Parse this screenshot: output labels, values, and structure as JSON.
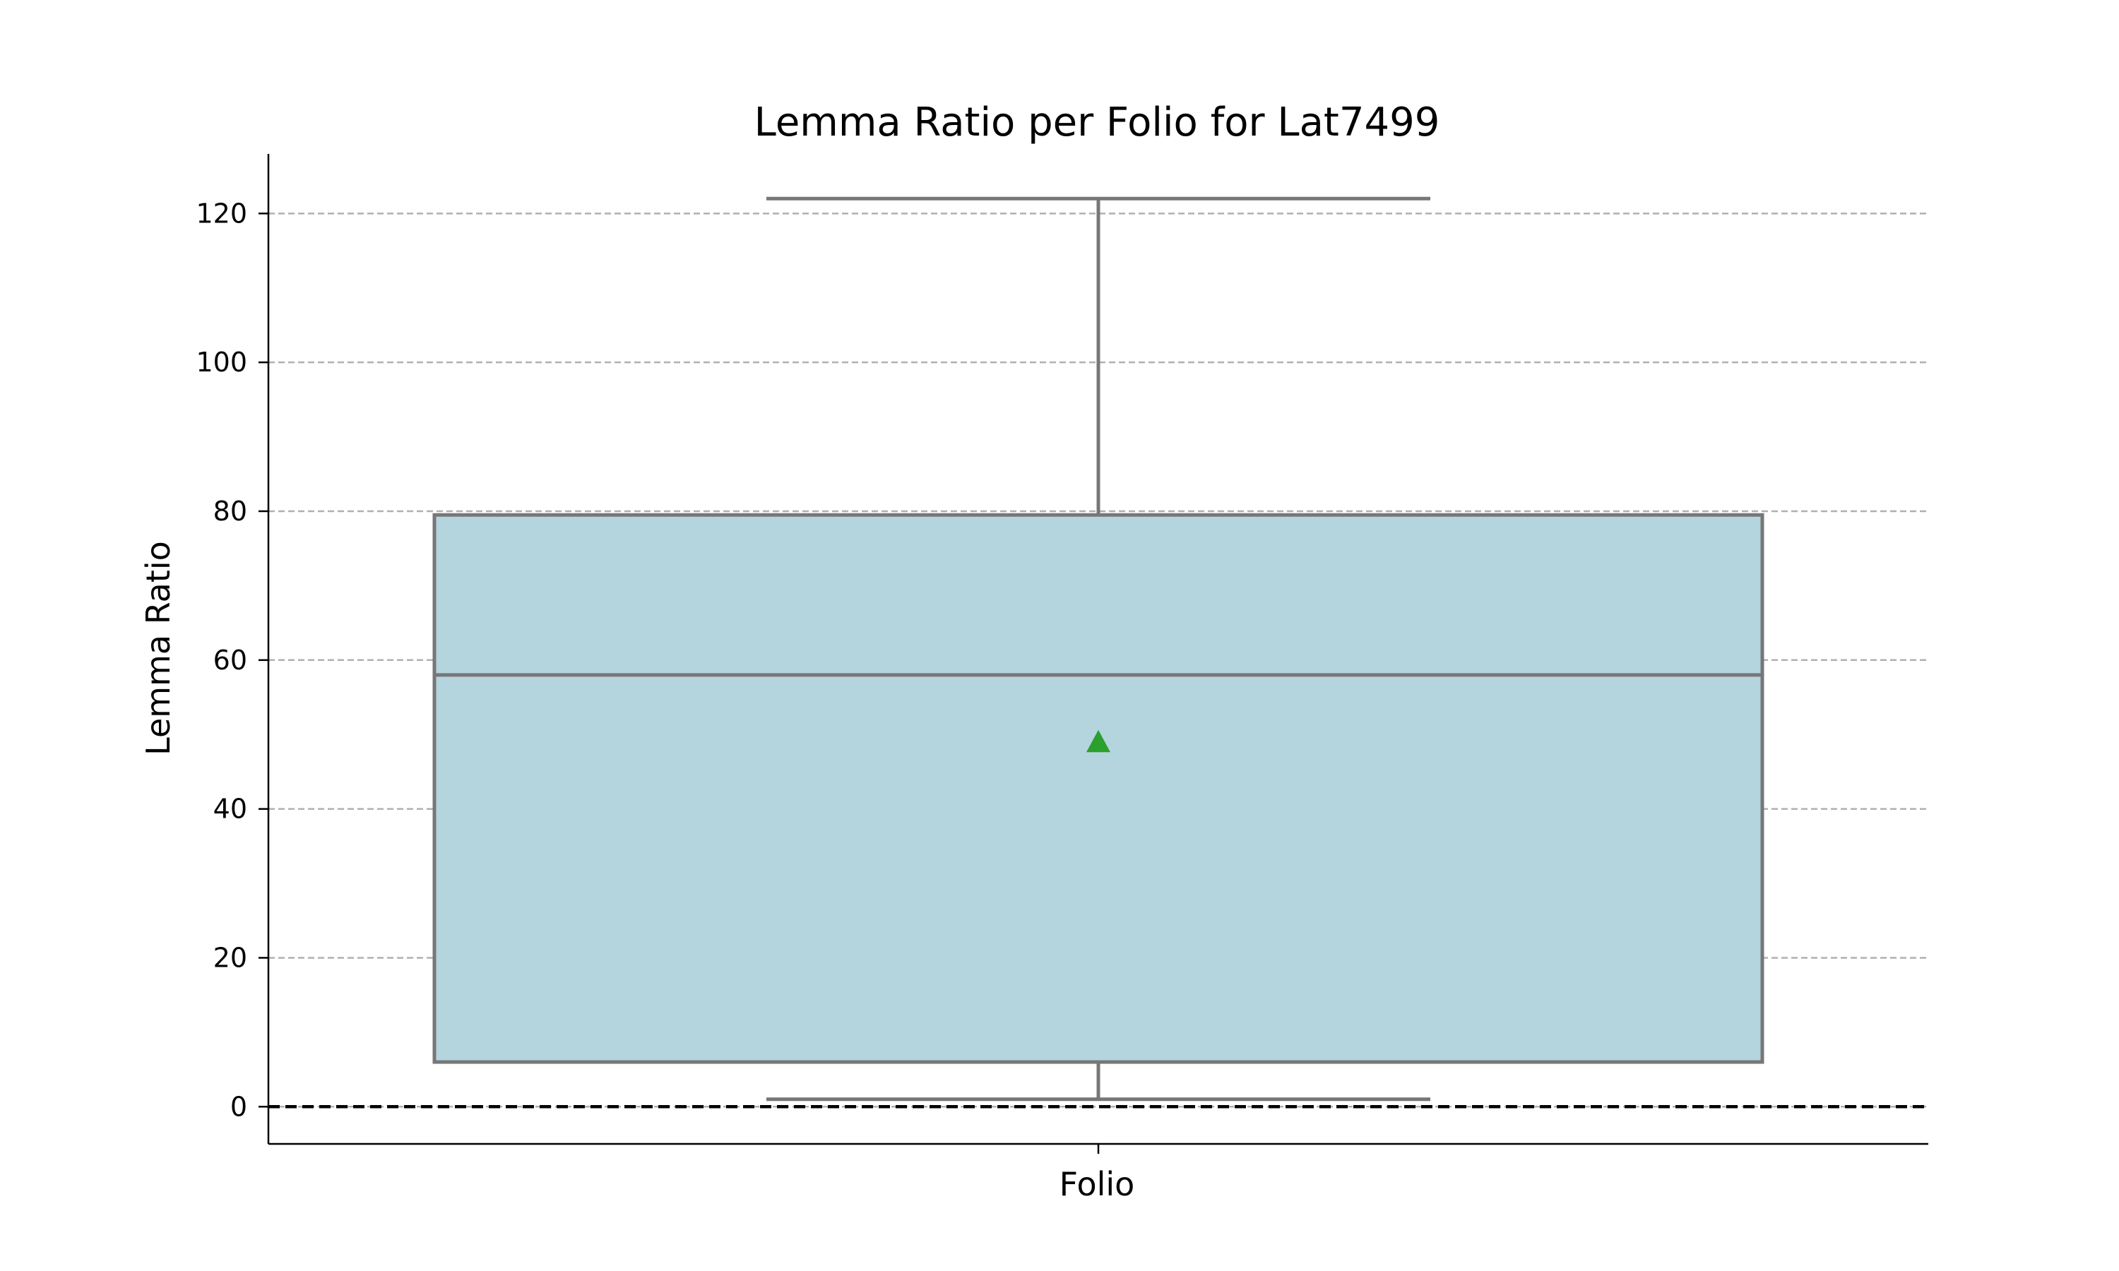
{
  "chart_data": {
    "type": "box",
    "title": "Lemma Ratio per Folio for Lat7499",
    "xlabel": "Folio",
    "ylabel": "Lemma Ratio",
    "categories": [
      ""
    ],
    "ylim": [
      -5,
      128
    ],
    "yticks": [
      0,
      20,
      40,
      60,
      80,
      100,
      120
    ],
    "grid": "y-dashed",
    "reference_line": {
      "y": 0,
      "style": "dashed",
      "color": "#000000"
    },
    "series": [
      {
        "whisker_low": 1,
        "q1": 6,
        "median": 58,
        "q3": 79.5,
        "whisker_high": 122,
        "mean": 49
      }
    ],
    "colors": {
      "box_fill": "#b4d4de",
      "box_edge": "#777777",
      "mean_marker": "#2ca02c",
      "grid": "#b0b0b0",
      "axis": "#000000"
    }
  }
}
